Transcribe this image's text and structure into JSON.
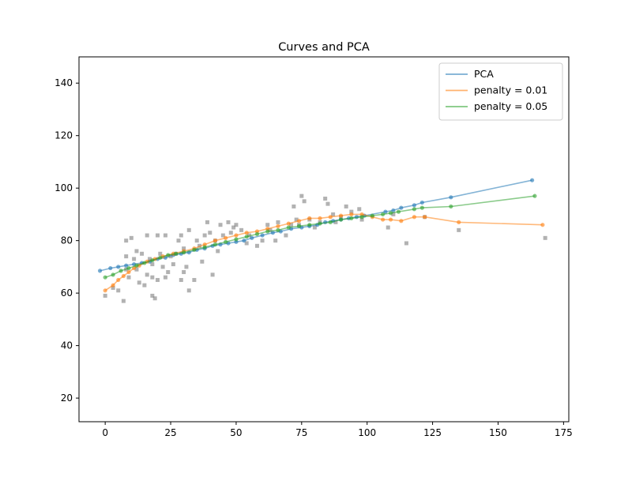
{
  "chart_data": {
    "type": "scatter",
    "title": "Curves and PCA",
    "xlabel": "",
    "ylabel": "",
    "xlim": [
      -10,
      177
    ],
    "ylim": [
      11,
      150
    ],
    "xticks": [
      0,
      25,
      50,
      75,
      100,
      125,
      150,
      175
    ],
    "yticks": [
      20,
      40,
      60,
      80,
      100,
      120,
      140
    ],
    "grid": false,
    "legend_position": "top-right",
    "colors": {
      "scatter": "#7f7f7f",
      "PCA": "#1f77b4",
      "penalty_001": "#ff7f0e",
      "penalty_005": "#2ca02c"
    },
    "scatter_points": [
      [
        0,
        59
      ],
      [
        3,
        62
      ],
      [
        5,
        61
      ],
      [
        7,
        57
      ],
      [
        8,
        69
      ],
      [
        8,
        80
      ],
      [
        10,
        81
      ],
      [
        8,
        74
      ],
      [
        11,
        73
      ],
      [
        12,
        69
      ],
      [
        13,
        64
      ],
      [
        14,
        75
      ],
      [
        15,
        63
      ],
      [
        16,
        67
      ],
      [
        16,
        82
      ],
      [
        17,
        73
      ],
      [
        18,
        66
      ],
      [
        18,
        59
      ],
      [
        19,
        58
      ],
      [
        20,
        65
      ],
      [
        20,
        82
      ],
      [
        21,
        75
      ],
      [
        22,
        70
      ],
      [
        23,
        82
      ],
      [
        23,
        66
      ],
      [
        24,
        68
      ],
      [
        26,
        71
      ],
      [
        27,
        75
      ],
      [
        28,
        80
      ],
      [
        29,
        82
      ],
      [
        29,
        65
      ],
      [
        30,
        68
      ],
      [
        31,
        70
      ],
      [
        32,
        61
      ],
      [
        32,
        84
      ],
      [
        34,
        65
      ],
      [
        35,
        80
      ],
      [
        36,
        78
      ],
      [
        37,
        72
      ],
      [
        38,
        82
      ],
      [
        39,
        87
      ],
      [
        40,
        83
      ],
      [
        41,
        67
      ],
      [
        42,
        80
      ],
      [
        43,
        76
      ],
      [
        44,
        86
      ],
      [
        45,
        82
      ],
      [
        47,
        87
      ],
      [
        48,
        83
      ],
      [
        49,
        85
      ],
      [
        50,
        86
      ],
      [
        52,
        84
      ],
      [
        54,
        79
      ],
      [
        55,
        82
      ],
      [
        58,
        78
      ],
      [
        60,
        80
      ],
      [
        62,
        86
      ],
      [
        63,
        84
      ],
      [
        65,
        80
      ],
      [
        66,
        87
      ],
      [
        69,
        82
      ],
      [
        71,
        86
      ],
      [
        72,
        93
      ],
      [
        73,
        88
      ],
      [
        74,
        86
      ],
      [
        75,
        97
      ],
      [
        76,
        95
      ],
      [
        78,
        88
      ],
      [
        80,
        85
      ],
      [
        82,
        87
      ],
      [
        84,
        96
      ],
      [
        85,
        94
      ],
      [
        87,
        90
      ],
      [
        88,
        87
      ],
      [
        90,
        89
      ],
      [
        92,
        93
      ],
      [
        94,
        91
      ],
      [
        97,
        92
      ],
      [
        98,
        88
      ],
      [
        108,
        85
      ],
      [
        110,
        90
      ],
      [
        115,
        79
      ],
      [
        122,
        89
      ],
      [
        135,
        84
      ],
      [
        168,
        81
      ],
      [
        12,
        76
      ],
      [
        18,
        71
      ],
      [
        25,
        74
      ],
      [
        30,
        77
      ],
      [
        9,
        66
      ]
    ],
    "series": [
      {
        "name": "PCA",
        "x": [
          -2,
          2,
          5,
          8,
          11,
          14,
          17,
          20,
          23,
          26,
          29,
          32,
          35,
          38,
          41,
          44,
          47,
          50,
          53,
          56,
          60,
          64,
          67,
          71,
          75,
          78,
          81,
          84,
          87,
          90,
          93,
          96,
          99,
          107,
          110,
          113,
          118,
          121,
          132,
          163
        ],
        "y": [
          68.5,
          69.5,
          70,
          70.5,
          71,
          71.5,
          72,
          73,
          73.5,
          74.5,
          75,
          75.5,
          76.5,
          77,
          78,
          78.5,
          79,
          79.5,
          80,
          81,
          82,
          83,
          83.5,
          84.5,
          85,
          85.5,
          86,
          87,
          87.5,
          88,
          88.5,
          89,
          89.5,
          91,
          91.5,
          92.5,
          93.5,
          94.5,
          96.5,
          103
        ]
      },
      {
        "name": "penalty = 0.01",
        "x": [
          0,
          3,
          5,
          7,
          9,
          11,
          13,
          16,
          19,
          22,
          26,
          30,
          34,
          38,
          42,
          46,
          50,
          54,
          58,
          62,
          66,
          70,
          74,
          78,
          82,
          86,
          90,
          94,
          98,
          102,
          106,
          109,
          113,
          118,
          122,
          135,
          167
        ],
        "y": [
          61,
          63,
          65,
          66.5,
          68,
          69.5,
          70.5,
          72,
          73,
          74,
          75,
          76,
          77,
          78.5,
          80,
          81,
          82,
          83,
          83.5,
          84.5,
          85.5,
          86.5,
          87.5,
          88.5,
          88.5,
          89,
          89.5,
          90,
          90,
          89,
          88,
          88,
          87.5,
          89,
          89,
          87,
          86
        ]
      },
      {
        "name": "penalty = 0.05",
        "x": [
          0,
          3,
          6,
          9,
          12,
          15,
          18,
          21,
          24,
          27,
          30,
          34,
          38,
          42,
          46,
          50,
          54,
          58,
          62,
          66,
          70,
          74,
          78,
          82,
          86,
          90,
          94,
          98,
          102,
          106,
          109,
          112,
          118,
          121,
          132,
          164
        ],
        "y": [
          66,
          67,
          68.5,
          69.5,
          70.5,
          71.5,
          72.5,
          73.5,
          74.5,
          75,
          75.5,
          76.5,
          77.5,
          78.5,
          79.5,
          80.5,
          81.5,
          82.5,
          83.5,
          84,
          85,
          85.5,
          86,
          86.5,
          87,
          88,
          88.5,
          89,
          89.5,
          90,
          90.5,
          91,
          92,
          92.5,
          93,
          97
        ]
      }
    ],
    "legend": [
      "PCA",
      "penalty = 0.01",
      "penalty = 0.05"
    ]
  }
}
